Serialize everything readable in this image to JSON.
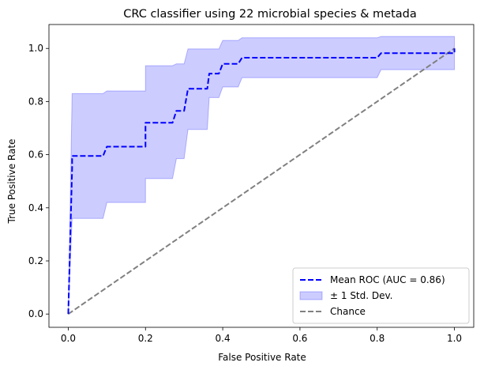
{
  "chart_data": {
    "type": "line",
    "title": "CRC classifier using 22 microbial species & metada",
    "xlabel": "False Positive Rate",
    "ylabel": "True Positive Rate",
    "xlim": [
      -0.05,
      1.05
    ],
    "ylim": [
      -0.05,
      1.09
    ],
    "xticks": [
      0.0,
      0.2,
      0.4,
      0.6,
      0.8,
      1.0
    ],
    "xtick_labels": [
      "0.0",
      "0.2",
      "0.4",
      "0.6",
      "0.8",
      "1.0"
    ],
    "yticks": [
      0.0,
      0.2,
      0.4,
      0.6,
      0.8,
      1.0
    ],
    "ytick_labels": [
      "0.0",
      "0.2",
      "0.4",
      "0.6",
      "0.8",
      "1.0"
    ],
    "grid": false,
    "legend_position": "bottom-right",
    "series": [
      {
        "name": "Mean ROC (AUC = 0.86)",
        "style": "dashed",
        "color": "#0000ff",
        "x": [
          0.0,
          0.01,
          0.01,
          0.09,
          0.1,
          0.2,
          0.2,
          0.27,
          0.28,
          0.3,
          0.31,
          0.36,
          0.365,
          0.39,
          0.4,
          0.44,
          0.45,
          0.8,
          0.81,
          1.0,
          1.0
        ],
        "y": [
          0.0,
          0.55,
          0.595,
          0.595,
          0.63,
          0.63,
          0.72,
          0.72,
          0.765,
          0.765,
          0.848,
          0.848,
          0.905,
          0.905,
          0.942,
          0.942,
          0.965,
          0.965,
          0.982,
          0.982,
          1.0
        ]
      },
      {
        "name": "± 1 Std. Dev.",
        "type": "band",
        "color": "#0000ff",
        "x": [
          0.0,
          0.01,
          0.09,
          0.1,
          0.2,
          0.2,
          0.27,
          0.28,
          0.3,
          0.31,
          0.36,
          0.365,
          0.39,
          0.4,
          0.44,
          0.45,
          0.8,
          0.81,
          1.0
        ],
        "upper": [
          0.0,
          0.83,
          0.83,
          0.84,
          0.84,
          0.935,
          0.935,
          0.942,
          0.942,
          0.998,
          0.998,
          0.998,
          0.998,
          1.03,
          1.03,
          1.04,
          1.04,
          1.045,
          1.045
        ],
        "lower": [
          0.0,
          0.36,
          0.36,
          0.42,
          0.42,
          0.51,
          0.51,
          0.585,
          0.585,
          0.695,
          0.695,
          0.815,
          0.815,
          0.855,
          0.855,
          0.89,
          0.89,
          0.92,
          0.92
        ]
      },
      {
        "name": "Chance",
        "style": "dashed",
        "color": "#808080",
        "x": [
          0.0,
          1.0
        ],
        "y": [
          0.0,
          1.0
        ]
      }
    ]
  }
}
